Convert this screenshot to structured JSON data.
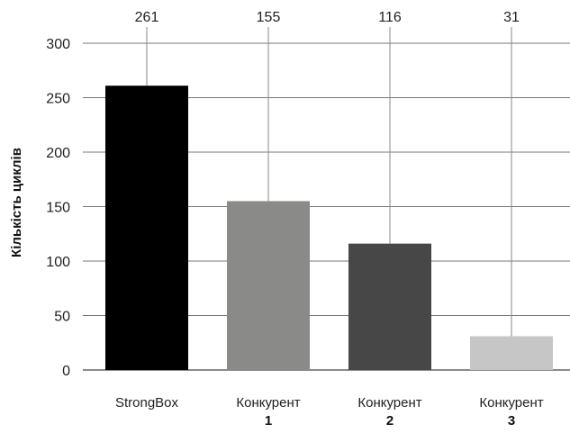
{
  "chart_data": {
    "type": "bar",
    "ylabel": "Кількість циклів",
    "ylim": [
      0,
      300
    ],
    "yticks": [
      0,
      50,
      100,
      150,
      200,
      250,
      300
    ],
    "grid": true,
    "categories": [
      {
        "line1": "StrongBox",
        "line2": ""
      },
      {
        "line1": "Конкурент",
        "line2": "1"
      },
      {
        "line1": "Конкурент",
        "line2": "2"
      },
      {
        "line1": "Конкурент",
        "line2": "3"
      }
    ],
    "values": [
      261,
      155,
      116,
      31
    ],
    "value_labels": [
      "261",
      "155",
      "116",
      "31"
    ],
    "colors": [
      "#000000",
      "#8a8a88",
      "#474747",
      "#c5c6c5"
    ]
  }
}
